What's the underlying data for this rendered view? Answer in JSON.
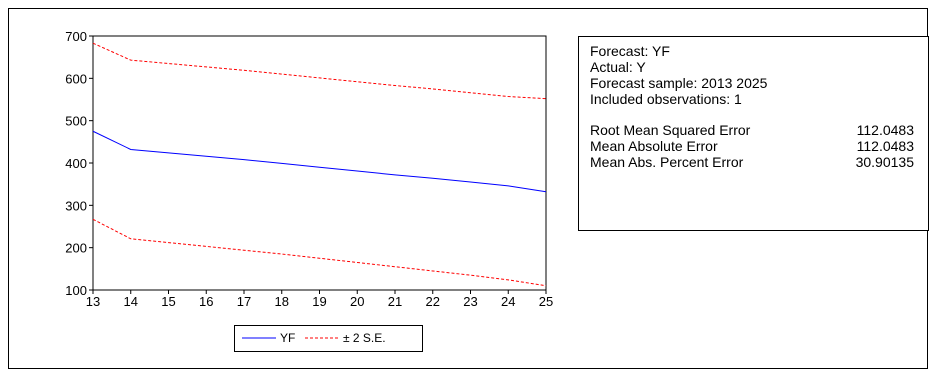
{
  "chart_data": {
    "type": "line",
    "x": [
      13,
      14,
      15,
      16,
      17,
      18,
      19,
      20,
      21,
      22,
      23,
      24,
      25
    ],
    "xlim": [
      13,
      25
    ],
    "ylim": [
      100,
      700
    ],
    "x_ticks": [
      "13",
      "14",
      "15",
      "16",
      "17",
      "18",
      "19",
      "20",
      "21",
      "22",
      "23",
      "24",
      "25"
    ],
    "y_ticks": [
      "100",
      "200",
      "300",
      "400",
      "500",
      "600",
      "700"
    ],
    "grid": false,
    "legend_position": "bottom",
    "series": [
      {
        "name": "YF",
        "color": "#0000ff",
        "style": "solid",
        "values": [
          475,
          432,
          424,
          416,
          408,
          399,
          390,
          381,
          372,
          364,
          355,
          346,
          332
        ]
      },
      {
        "name": "± 2 S.E.",
        "color": "#ff0000",
        "style": "dashed",
        "values": [
          683,
          643,
          635,
          627,
          619,
          610,
          601,
          592,
          583,
          575,
          566,
          557,
          552
        ]
      },
      {
        "name": "",
        "color": "#ff0000",
        "style": "dashed",
        "values": [
          267,
          221,
          212,
          203,
          194,
          185,
          175,
          165,
          155,
          145,
          135,
          124,
          110
        ]
      }
    ]
  },
  "stats": {
    "info": [
      "Forecast: YF",
      "Actual: Y",
      "Forecast sample: 2013 2025",
      "Included observations: 1"
    ],
    "metrics": [
      {
        "label": "Root Mean Squared Error",
        "value": "112.0483"
      },
      {
        "label": "Mean Absolute Error",
        "value": "112.0483"
      },
      {
        "label": "Mean Abs. Percent Error",
        "value": "30.90135"
      }
    ]
  }
}
